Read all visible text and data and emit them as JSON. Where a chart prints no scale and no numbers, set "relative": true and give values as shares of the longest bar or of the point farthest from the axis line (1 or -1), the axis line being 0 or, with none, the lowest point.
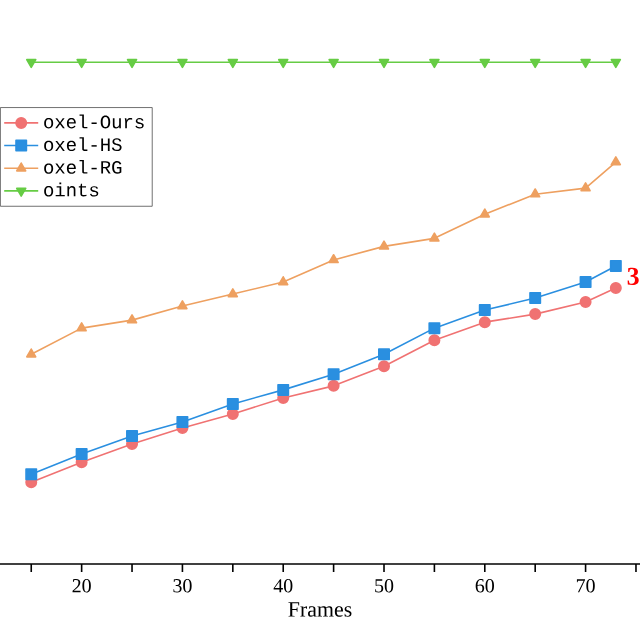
{
  "chart_data": {
    "type": "line",
    "relative": true,
    "xlabel": "Frames",
    "x": [
      15,
      20,
      25,
      30,
      35,
      40,
      45,
      50,
      55,
      60,
      65,
      70,
      73
    ],
    "xlim": [
      11.9,
      75.4
    ],
    "xticks": [
      {
        "value": 15,
        "label": null
      },
      20,
      {
        "value": 25,
        "label": null
      },
      30,
      {
        "value": 35,
        "label": null
      },
      40,
      {
        "value": 45,
        "label": null
      },
      50,
      {
        "value": 55,
        "label": null
      },
      60,
      {
        "value": 65,
        "label": null
      },
      70,
      {
        "value": 75,
        "label": null
      }
    ],
    "legend": "left",
    "tick_labels": "x",
    "grid": false,
    "annotations": [
      "3"
    ],
    "series": [
      {
        "name": "oxel-Ours",
        "color": "#f07272",
        "marker": "circle",
        "values": [
          0.163,
          0.203,
          0.239,
          0.271,
          0.299,
          0.331,
          0.355,
          0.394,
          0.446,
          0.482,
          0.498,
          0.522,
          0.55
        ]
      },
      {
        "name": "oxel-HS",
        "color": "#2a8fe0",
        "marker": "square",
        "values": [
          0.179,
          0.219,
          0.255,
          0.283,
          0.319,
          0.347,
          0.378,
          0.418,
          0.47,
          0.506,
          0.53,
          0.562,
          0.594
        ]
      },
      {
        "name": "oxel-RG",
        "color": "#eea060",
        "marker": "triangle",
        "values": [
          0.418,
          0.47,
          0.486,
          0.514,
          0.538,
          0.562,
          0.606,
          0.633,
          0.649,
          0.697,
          0.737,
          0.749,
          0.801
        ]
      },
      {
        "name": "oints",
        "color": "#66cc44",
        "marker": "triangle down",
        "values": [
          1,
          1,
          1,
          1,
          1,
          1,
          1,
          1,
          1,
          1,
          1,
          1,
          1
        ]
      }
    ]
  }
}
